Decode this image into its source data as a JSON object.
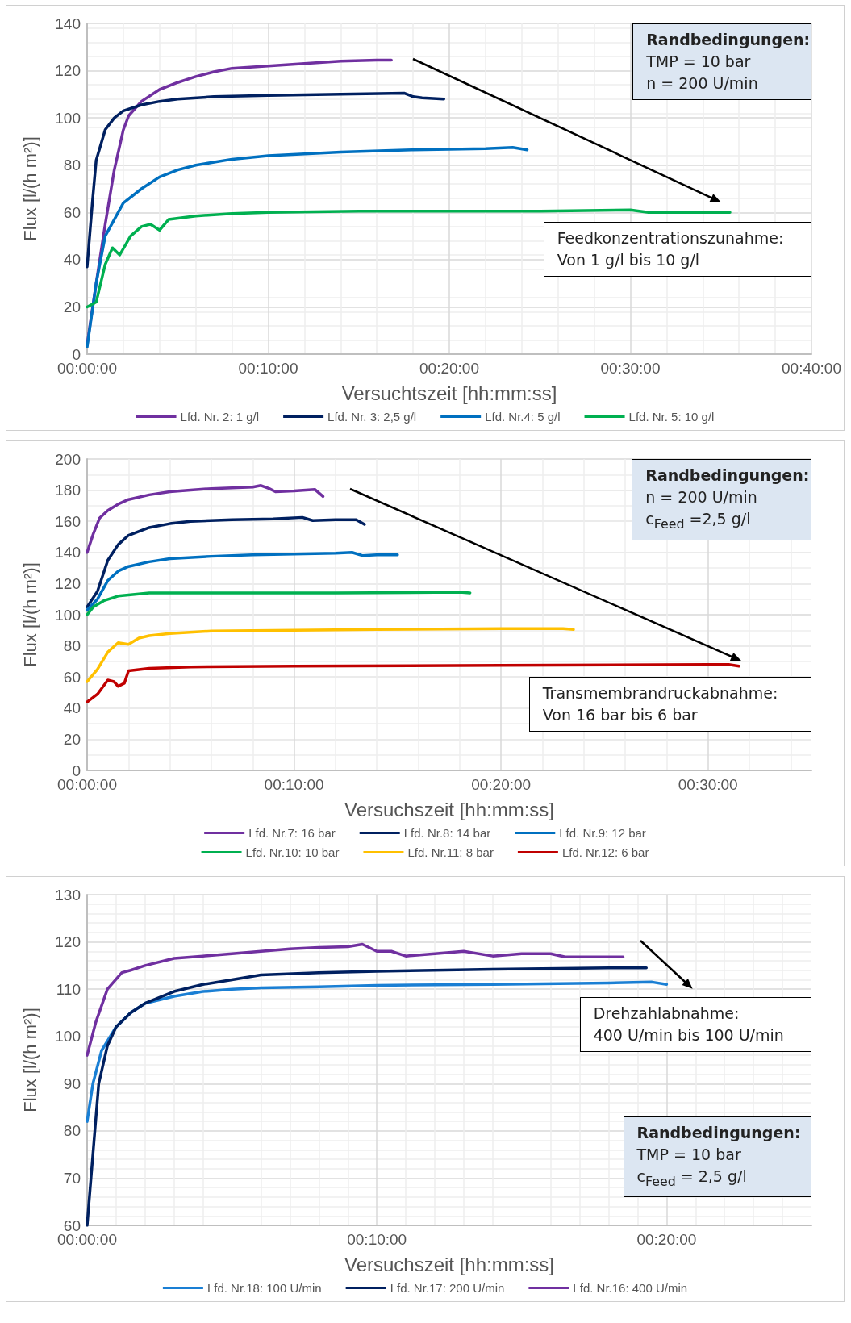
{
  "chart_data": [
    {
      "type": "line",
      "xlabel": "Versuchtszeit [hh:mm:ss]",
      "ylabel": "Flux [l/(h m²)]",
      "xlim": [
        0,
        40
      ],
      "ylim": [
        0,
        140
      ],
      "xticks": [
        {
          "value": 0,
          "label": "00:00:00"
        },
        {
          "value": 10,
          "label": "00:10:00"
        },
        {
          "value": 20,
          "label": "00:20:00"
        },
        {
          "value": 30,
          "label": "00:30:00"
        },
        {
          "value": 40,
          "label": "00:40:00"
        }
      ],
      "yticks": [
        0,
        20,
        40,
        60,
        80,
        100,
        120,
        140
      ],
      "grid": true,
      "legend": "bottom",
      "marker": "none",
      "line_style": "solid",
      "annotations": [
        "Randbedingungen:\nTMP = 10 bar\nn = 200 U/min",
        "Feedkonzentrationszunahme:\nVon 1 g/l bis 10 g/l"
      ],
      "series": [
        {
          "name": "Lfd. Nr. 2: 1 g/l",
          "color": "#7030a0",
          "x": [
            0,
            0.5,
            1,
            1.5,
            2,
            2.3,
            3,
            4,
            5,
            6,
            7,
            8,
            9,
            10,
            12,
            14,
            16,
            16.8
          ],
          "values": [
            4,
            30,
            55,
            78,
            95,
            101,
            107,
            112,
            115,
            117.5,
            119.5,
            121,
            121.5,
            122,
            123,
            124,
            124.5,
            124.5
          ]
        },
        {
          "name": "Lfd. Nr. 3: 2,5 g/l",
          "color": "#002060",
          "x": [
            0,
            0.3,
            0.5,
            1,
            1.5,
            2,
            3,
            4,
            5,
            7,
            10,
            14,
            17.5,
            18,
            18.5,
            19.7
          ],
          "values": [
            37,
            65,
            82,
            95,
            100,
            103,
            105.5,
            107,
            108,
            109,
            109.5,
            110,
            110.5,
            109,
            108.5,
            108
          ]
        },
        {
          "name": "Lfd. Nr.4: 5 g/l",
          "color": "#0070c0",
          "x": [
            0,
            0.5,
            1,
            1.5,
            2,
            3,
            4,
            5,
            6,
            8,
            10,
            14,
            18,
            22,
            23.5,
            24.3
          ],
          "values": [
            3,
            30,
            50,
            57,
            64,
            70,
            75,
            78,
            80,
            82.5,
            84,
            85.5,
            86.5,
            87,
            87.5,
            86.5
          ]
        },
        {
          "name": "Lfd. Nr. 5: 10 g/l",
          "color": "#00b050",
          "x": [
            0,
            0.5,
            1,
            1.4,
            1.8,
            2.4,
            3,
            3.5,
            4,
            4.5,
            6,
            8,
            10,
            15,
            20,
            25,
            30,
            31,
            35.5
          ],
          "values": [
            20,
            22,
            38,
            45,
            42,
            50,
            54,
            55,
            52.5,
            57,
            58.5,
            59.5,
            60,
            60.5,
            60.5,
            60.5,
            61,
            60,
            60
          ]
        }
      ]
    },
    {
      "type": "line",
      "xlabel": "Versuchszeit [hh:mm:ss]",
      "ylabel": "Flux [l/(h m²)]",
      "xlim": [
        0,
        35
      ],
      "ylim": [
        0,
        200
      ],
      "xticks": [
        {
          "value": 0,
          "label": "00:00:00"
        },
        {
          "value": 10,
          "label": "00:10:00"
        },
        {
          "value": 20,
          "label": "00:20:00"
        },
        {
          "value": 30,
          "label": "00:30:00"
        }
      ],
      "yticks": [
        0,
        20,
        40,
        60,
        80,
        100,
        120,
        140,
        160,
        180,
        200
      ],
      "grid": true,
      "legend": "bottom",
      "marker": "none",
      "line_style": "solid",
      "annotations": [
        "Randbedingungen:\nn = 200 U/min\nc$_{Feed}$ =2,5 g/l",
        "Transmembrandruckabnahme:\nVon 16 bar bis 6 bar"
      ],
      "series": [
        {
          "name": "Lfd. Nr.7: 16 bar",
          "color": "#7030a0",
          "x": [
            0,
            0.3,
            0.6,
            1,
            1.5,
            2,
            3,
            4,
            5,
            6,
            7,
            8,
            8.4,
            8.8,
            9.1,
            10,
            11,
            11.4
          ],
          "values": [
            140,
            152,
            162,
            167,
            171,
            174,
            177,
            179,
            180,
            181,
            181.5,
            182,
            183,
            181,
            179,
            179.5,
            180.5,
            176
          ]
        },
        {
          "name": "Lfd. Nr.8: 14 bar",
          "color": "#002060",
          "x": [
            0,
            0.5,
            1,
            1.5,
            2,
            3,
            4,
            5,
            7,
            9,
            10.4,
            10.9,
            12,
            13,
            13.4
          ],
          "values": [
            105,
            115,
            135,
            145,
            151,
            156,
            158.5,
            160,
            161,
            161.5,
            162.5,
            160.5,
            161,
            161,
            158
          ]
        },
        {
          "name": "Lfd. Nr.9: 12 bar",
          "color": "#0070c0",
          "x": [
            0,
            0.5,
            1,
            1.5,
            2,
            3,
            4,
            6,
            8,
            10,
            12,
            12.8,
            13.3,
            14,
            15
          ],
          "values": [
            103,
            110,
            122,
            128,
            131,
            134,
            136,
            137.5,
            138.5,
            139,
            139.5,
            140,
            138,
            138.5,
            138.5
          ]
        },
        {
          "name": "Lfd. Nr.10: 10 bar",
          "color": "#00b050",
          "x": [
            0,
            0.3,
            0.8,
            1.5,
            3,
            5,
            8,
            12,
            18,
            18.5
          ],
          "values": [
            100,
            105,
            109,
            112,
            114,
            114,
            114,
            114,
            114.5,
            114
          ]
        },
        {
          "name": "Lfd. Nr.11: 8 bar",
          "color": "#ffc000",
          "x": [
            0,
            0.5,
            1,
            1.5,
            2,
            2.5,
            3,
            4,
            6,
            10,
            14,
            20,
            23,
            23.5
          ],
          "values": [
            57,
            65,
            76,
            82,
            81,
            85,
            86.5,
            88,
            89.5,
            90,
            90.5,
            91,
            91,
            90.5
          ]
        },
        {
          "name": "Lfd. Nr.12: 6 bar",
          "color": "#c00000",
          "x": [
            0,
            0.5,
            1,
            1.3,
            1.5,
            1.8,
            2,
            3,
            5,
            10,
            20,
            30,
            31,
            31.5
          ],
          "values": [
            44,
            49,
            58,
            57,
            54,
            56,
            64,
            65.5,
            66.5,
            67,
            67.5,
            68,
            68,
            67
          ]
        }
      ]
    },
    {
      "type": "line",
      "xlabel": "Versuchszeit [hh:mm:ss]",
      "ylabel": "Flux [l/(h m²)]",
      "xlim": [
        0,
        25
      ],
      "ylim": [
        60,
        130
      ],
      "xticks": [
        {
          "value": 0,
          "label": "00:00:00"
        },
        {
          "value": 10,
          "label": "00:10:00"
        },
        {
          "value": 20,
          "label": "00:20:00"
        }
      ],
      "yticks": [
        60,
        70,
        80,
        90,
        100,
        110,
        120,
        130
      ],
      "grid": true,
      "legend": "bottom",
      "marker": "none",
      "line_style": "solid",
      "annotations": [
        "Drehzahlabnahme:\n400 U/min bis 100 U/min",
        "Randbedingungen:\nTMP = 10 bar\nc$_{Feed}$ = 2,5 g/l"
      ],
      "series": [
        {
          "name": "Lfd. Nr.18: 100 U/min",
          "color": "#1a7fd4",
          "x": [
            0,
            0.2,
            0.5,
            1,
            1.5,
            2,
            3,
            4,
            5,
            6,
            8,
            10,
            14,
            18,
            19.5,
            20
          ],
          "values": [
            82,
            90,
            97,
            102,
            105,
            107,
            108.5,
            109.5,
            110,
            110.3,
            110.5,
            110.8,
            111,
            111.3,
            111.5,
            111
          ]
        },
        {
          "name": "Lfd. Nr.17: 200 U/min",
          "color": "#002060",
          "x": [
            0,
            0.2,
            0.4,
            0.7,
            1,
            1.5,
            2,
            3,
            4,
            5,
            6,
            8,
            10,
            14,
            18,
            19.3
          ],
          "values": [
            60,
            75,
            90,
            98,
            102,
            105,
            107,
            109.5,
            111,
            112,
            113,
            113.5,
            113.8,
            114.2,
            114.5,
            114.5
          ]
        },
        {
          "name": "Lfd. Nr.16: 400 U/min",
          "color": "#7030a0",
          "x": [
            0,
            0.3,
            0.7,
            1.2,
            1.5,
            2,
            3,
            4,
            5,
            6,
            7,
            8,
            9,
            9.5,
            10,
            10.5,
            11,
            12,
            13,
            14,
            15,
            16,
            16.5,
            17,
            18.5
          ],
          "values": [
            96,
            103,
            110,
            113.5,
            114,
            115,
            116.5,
            117,
            117.5,
            118,
            118.5,
            118.8,
            119,
            119.5,
            118,
            118,
            117,
            117.5,
            118,
            117,
            117.5,
            117.5,
            116.8,
            116.8,
            116.8
          ]
        }
      ]
    }
  ]
}
